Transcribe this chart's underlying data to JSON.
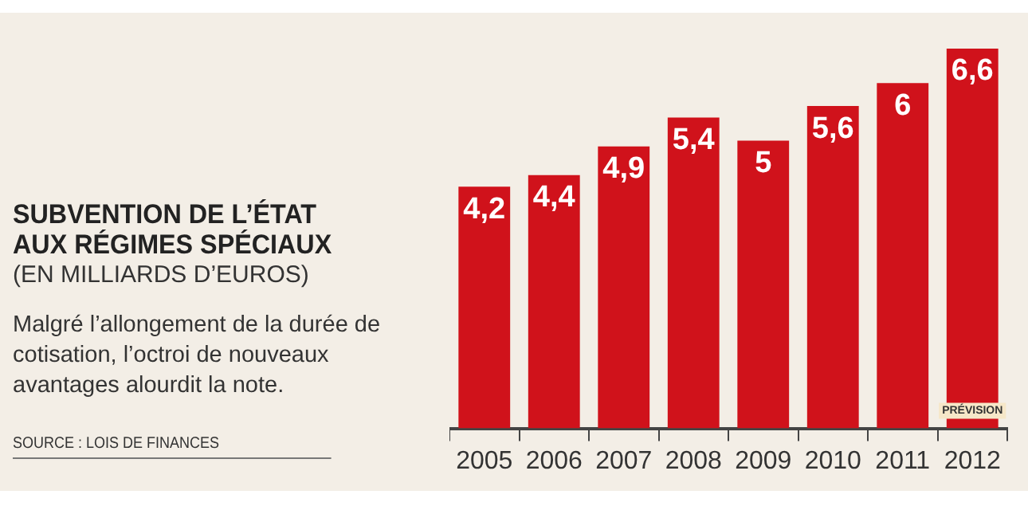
{
  "chart_data": {
    "type": "bar",
    "title": "SUBVENTION DE L’ÉTAT AUX RÉGIMES SPÉCIAUX",
    "subtitle": "(EN MILLIARDS D’EUROS)",
    "categories": [
      "2005",
      "2006",
      "2007",
      "2008",
      "2009",
      "2010",
      "2011",
      "2012"
    ],
    "values": [
      4.2,
      4.4,
      4.9,
      5.4,
      5,
      5.6,
      6,
      6.6
    ],
    "value_labels": [
      "4,2",
      "4,4",
      "4,9",
      "5,4",
      "5",
      "5,6",
      "6",
      "6,6"
    ],
    "color": "#d0121b",
    "tick_labels": "x",
    "grid": false,
    "legend": false,
    "annotations": [
      "Malgré l’allongement de la durée de cotisation, l’octroi de nouveaux avantages alourdit la note.",
      "SOURCE : LOIS DE FINANCES",
      {
        "text": "PRÉVISION",
        "x": "2012",
        "y": 0
      }
    ]
  }
}
